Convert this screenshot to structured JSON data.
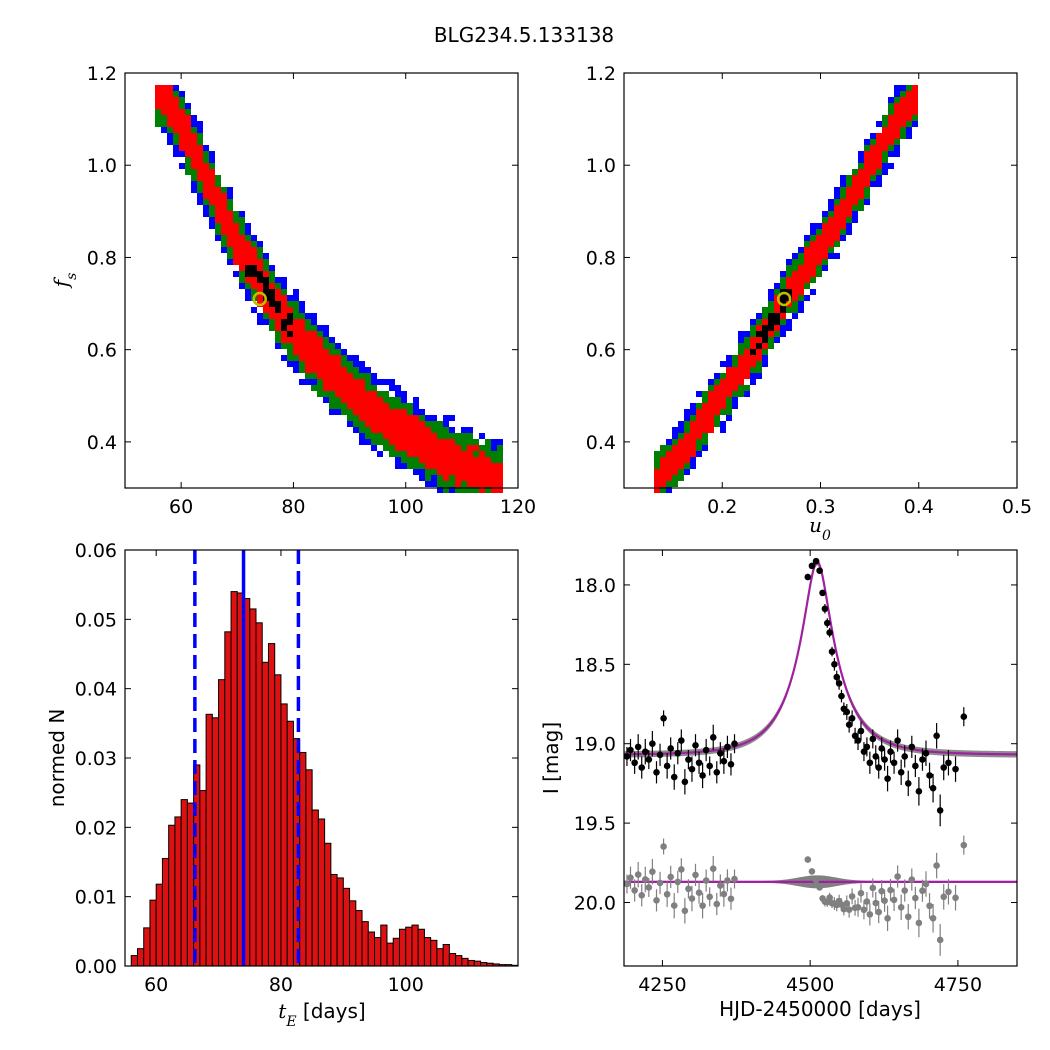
{
  "title": "BLG234.5.133138",
  "colors": {
    "blue_band": "#0000ff",
    "green_band": "#008000",
    "red_band": "#ff0000",
    "best_band": "#000000",
    "best_marker": "#bfbf00",
    "hist_fill": "#dd1111",
    "median_line": "#0000ff",
    "model_line": "#a020a0",
    "model_band": "#808080",
    "residual_points": "#808080"
  },
  "chart_data": [
    {
      "id": "tE-fs-map",
      "type": "heatmap",
      "xlabel": "",
      "ylabel": "f_s",
      "xlim": [
        50,
        120
      ],
      "ylim": [
        0.3,
        1.2
      ],
      "xticks": [
        "60",
        "80",
        "100",
        "120"
      ],
      "yticks": [
        "0.4",
        "0.6",
        "0.8",
        "1.0",
        "1.2"
      ],
      "ridge": {
        "x": [
          56.5,
          60,
          63,
          66,
          70,
          74,
          78,
          82,
          86,
          90,
          95,
          100,
          105,
          110,
          117
        ],
        "y": [
          1.16,
          1.09,
          1.01,
          0.93,
          0.83,
          0.75,
          0.67,
          0.61,
          0.56,
          0.51,
          0.46,
          0.42,
          0.38,
          0.35,
          0.32
        ]
      },
      "band_widths": {
        "blue": 0.085,
        "green": 0.065,
        "red": 0.042
      },
      "best_region": {
        "x": [
          70,
          80
        ],
        "y": [
          0.63,
          0.78
        ]
      },
      "best_fit": {
        "x": 74,
        "y": 0.71
      }
    },
    {
      "id": "u0-fs-map",
      "type": "heatmap",
      "xlabel": "u_0",
      "ylabel": "",
      "xlim": [
        0.1,
        0.5
      ],
      "ylim": [
        0.3,
        1.2
      ],
      "xticks": [
        "0.2",
        "0.3",
        "0.4",
        "0.5"
      ],
      "yticks": [
        "0.4",
        "0.6",
        "0.8",
        "1.0",
        "1.2"
      ],
      "ridge": {
        "x": [
          0.135,
          0.16,
          0.2,
          0.24,
          0.26,
          0.3,
          0.34,
          0.37,
          0.4
        ],
        "y": [
          0.32,
          0.38,
          0.5,
          0.62,
          0.7,
          0.82,
          0.96,
          1.07,
          1.16
        ]
      },
      "band_widths": {
        "blue": 0.07,
        "green": 0.052,
        "red": 0.034
      },
      "best_region": {
        "x": [
          0.23,
          0.27
        ],
        "y": [
          0.58,
          0.73
        ]
      },
      "best_fit": {
        "x": 0.263,
        "y": 0.71
      }
    },
    {
      "id": "tE-histogram",
      "type": "bar",
      "xlabel": "t_E [days]",
      "ylabel": "normed N",
      "xlim": [
        55,
        118
      ],
      "ylim": [
        0,
        0.06
      ],
      "xticks": [
        "60",
        "80",
        "100"
      ],
      "yticks": [
        "0.00",
        "0.01",
        "0.02",
        "0.03",
        "0.04",
        "0.05",
        "0.06"
      ],
      "bin_start": 56,
      "bin_width": 1,
      "values": [
        0.0015,
        0.0025,
        0.0055,
        0.0095,
        0.0118,
        0.0155,
        0.0203,
        0.0215,
        0.024,
        0.0235,
        0.029,
        0.0253,
        0.0363,
        0.0358,
        0.0413,
        0.0482,
        0.054,
        0.0538,
        0.053,
        0.0515,
        0.0495,
        0.0438,
        0.0465,
        0.042,
        0.0378,
        0.0353,
        0.0328,
        0.0308,
        0.0283,
        0.0225,
        0.0212,
        0.0177,
        0.0132,
        0.0127,
        0.0112,
        0.0094,
        0.008,
        0.0064,
        0.0049,
        0.0041,
        0.0059,
        0.0033,
        0.004,
        0.0053,
        0.0056,
        0.0059,
        0.0053,
        0.0041,
        0.0037,
        0.0025,
        0.0031,
        0.0018,
        0.0015,
        0.0011,
        0.0008,
        0.0007,
        0.0005,
        0.0004,
        0.0003,
        0.0002,
        0.0002,
        0.0001
      ],
      "median": 74,
      "interval": [
        66.2,
        82.8
      ]
    },
    {
      "id": "light-curve",
      "type": "scatter",
      "xlabel": "HJD-2450000 [days]",
      "ylabel": "I [mag]",
      "xlim": [
        4185,
        4850
      ],
      "ylim": [
        20.4,
        17.78
      ],
      "xticks": [
        "4250",
        "4500",
        "4750"
      ],
      "yticks": [
        "18.0",
        "18.5",
        "19.0",
        "19.5",
        "20.0"
      ],
      "model": {
        "t0": 4512,
        "tE": 74,
        "u0": 0.263,
        "fs": 0.71,
        "baseline": 19.07
      },
      "residual_offset": 19.87,
      "observations": [
        {
          "t": 4190,
          "mag": 19.08,
          "err": 0.06
        },
        {
          "t": 4196,
          "mag": 19.04,
          "err": 0.07
        },
        {
          "t": 4203,
          "mag": 19.12,
          "err": 0.07
        },
        {
          "t": 4209,
          "mag": 19.02,
          "err": 0.08
        },
        {
          "t": 4215,
          "mag": 19.15,
          "err": 0.07
        },
        {
          "t": 4221,
          "mag": 19.05,
          "err": 0.08
        },
        {
          "t": 4227,
          "mag": 19.1,
          "err": 0.06
        },
        {
          "t": 4233,
          "mag": 19.0,
          "err": 0.08
        },
        {
          "t": 4240,
          "mag": 19.18,
          "err": 0.07
        },
        {
          "t": 4246,
          "mag": 19.07,
          "err": 0.07
        },
        {
          "t": 4252,
          "mag": 18.84,
          "err": 0.05
        },
        {
          "t": 4258,
          "mag": 19.14,
          "err": 0.08
        },
        {
          "t": 4264,
          "mag": 19.03,
          "err": 0.07
        },
        {
          "t": 4270,
          "mag": 19.21,
          "err": 0.08
        },
        {
          "t": 4276,
          "mag": 19.06,
          "err": 0.07
        },
        {
          "t": 4282,
          "mag": 18.98,
          "err": 0.07
        },
        {
          "t": 4288,
          "mag": 19.24,
          "err": 0.08
        },
        {
          "t": 4294,
          "mag": 19.1,
          "err": 0.06
        },
        {
          "t": 4300,
          "mag": 19.16,
          "err": 0.08
        },
        {
          "t": 4306,
          "mag": 19.01,
          "err": 0.07
        },
        {
          "t": 4312,
          "mag": 19.12,
          "err": 0.07
        },
        {
          "t": 4318,
          "mag": 19.2,
          "err": 0.08
        },
        {
          "t": 4324,
          "mag": 19.04,
          "err": 0.07
        },
        {
          "t": 4330,
          "mag": 19.14,
          "err": 0.06
        },
        {
          "t": 4336,
          "mag": 18.96,
          "err": 0.08
        },
        {
          "t": 4342,
          "mag": 19.18,
          "err": 0.07
        },
        {
          "t": 4348,
          "mag": 19.06,
          "err": 0.07
        },
        {
          "t": 4354,
          "mag": 19.11,
          "err": 0.08
        },
        {
          "t": 4360,
          "mag": 19.02,
          "err": 0.07
        },
        {
          "t": 4366,
          "mag": 19.13,
          "err": 0.07
        },
        {
          "t": 4372,
          "mag": 19.0,
          "err": 0.06
        },
        {
          "t": 4496,
          "mag": 17.95,
          "err": 0.02
        },
        {
          "t": 4503,
          "mag": 17.88,
          "err": 0.02
        },
        {
          "t": 4510,
          "mag": 17.85,
          "err": 0.02
        },
        {
          "t": 4516,
          "mag": 17.91,
          "err": 0.02
        },
        {
          "t": 4521,
          "mag": 18.05,
          "err": 0.02
        },
        {
          "t": 4525,
          "mag": 18.15,
          "err": 0.03
        },
        {
          "t": 4529,
          "mag": 18.24,
          "err": 0.03
        },
        {
          "t": 4533,
          "mag": 18.3,
          "err": 0.03
        },
        {
          "t": 4537,
          "mag": 18.42,
          "err": 0.03
        },
        {
          "t": 4541,
          "mag": 18.5,
          "err": 0.04
        },
        {
          "t": 4545,
          "mag": 18.58,
          "err": 0.04
        },
        {
          "t": 4549,
          "mag": 18.62,
          "err": 0.04
        },
        {
          "t": 4553,
          "mag": 18.7,
          "err": 0.04
        },
        {
          "t": 4557,
          "mag": 18.78,
          "err": 0.04
        },
        {
          "t": 4562,
          "mag": 18.8,
          "err": 0.05
        },
        {
          "t": 4566,
          "mag": 18.88,
          "err": 0.05
        },
        {
          "t": 4571,
          "mag": 18.84,
          "err": 0.05
        },
        {
          "t": 4576,
          "mag": 18.95,
          "err": 0.05
        },
        {
          "t": 4581,
          "mag": 18.98,
          "err": 0.06
        },
        {
          "t": 4586,
          "mag": 18.92,
          "err": 0.06
        },
        {
          "t": 4591,
          "mag": 19.05,
          "err": 0.06
        },
        {
          "t": 4596,
          "mag": 19.02,
          "err": 0.06
        },
        {
          "t": 4601,
          "mag": 19.12,
          "err": 0.07
        },
        {
          "t": 4606,
          "mag": 18.97,
          "err": 0.06
        },
        {
          "t": 4611,
          "mag": 19.08,
          "err": 0.07
        },
        {
          "t": 4616,
          "mag": 19.15,
          "err": 0.07
        },
        {
          "t": 4621,
          "mag": 19.03,
          "err": 0.07
        },
        {
          "t": 4626,
          "mag": 19.1,
          "err": 0.07
        },
        {
          "t": 4631,
          "mag": 19.22,
          "err": 0.08
        },
        {
          "t": 4636,
          "mag": 19.05,
          "err": 0.07
        },
        {
          "t": 4642,
          "mag": 19.12,
          "err": 0.07
        },
        {
          "t": 4648,
          "mag": 18.98,
          "err": 0.07
        },
        {
          "t": 4654,
          "mag": 19.18,
          "err": 0.08
        },
        {
          "t": 4660,
          "mag": 19.08,
          "err": 0.07
        },
        {
          "t": 4666,
          "mag": 19.25,
          "err": 0.08
        },
        {
          "t": 4672,
          "mag": 19.02,
          "err": 0.07
        },
        {
          "t": 4678,
          "mag": 19.14,
          "err": 0.07
        },
        {
          "t": 4684,
          "mag": 19.3,
          "err": 0.09
        },
        {
          "t": 4690,
          "mag": 19.1,
          "err": 0.07
        },
        {
          "t": 4696,
          "mag": 19.06,
          "err": 0.08
        },
        {
          "t": 4702,
          "mag": 19.2,
          "err": 0.08
        },
        {
          "t": 4708,
          "mag": 19.28,
          "err": 0.09
        },
        {
          "t": 4714,
          "mag": 18.95,
          "err": 0.08
        },
        {
          "t": 4720,
          "mag": 19.42,
          "err": 0.1
        },
        {
          "t": 4726,
          "mag": 19.15,
          "err": 0.08
        },
        {
          "t": 4734,
          "mag": 19.12,
          "err": 0.08
        },
        {
          "t": 4746,
          "mag": 19.16,
          "err": 0.08
        },
        {
          "t": 4760,
          "mag": 18.83,
          "err": 0.06
        }
      ]
    }
  ]
}
